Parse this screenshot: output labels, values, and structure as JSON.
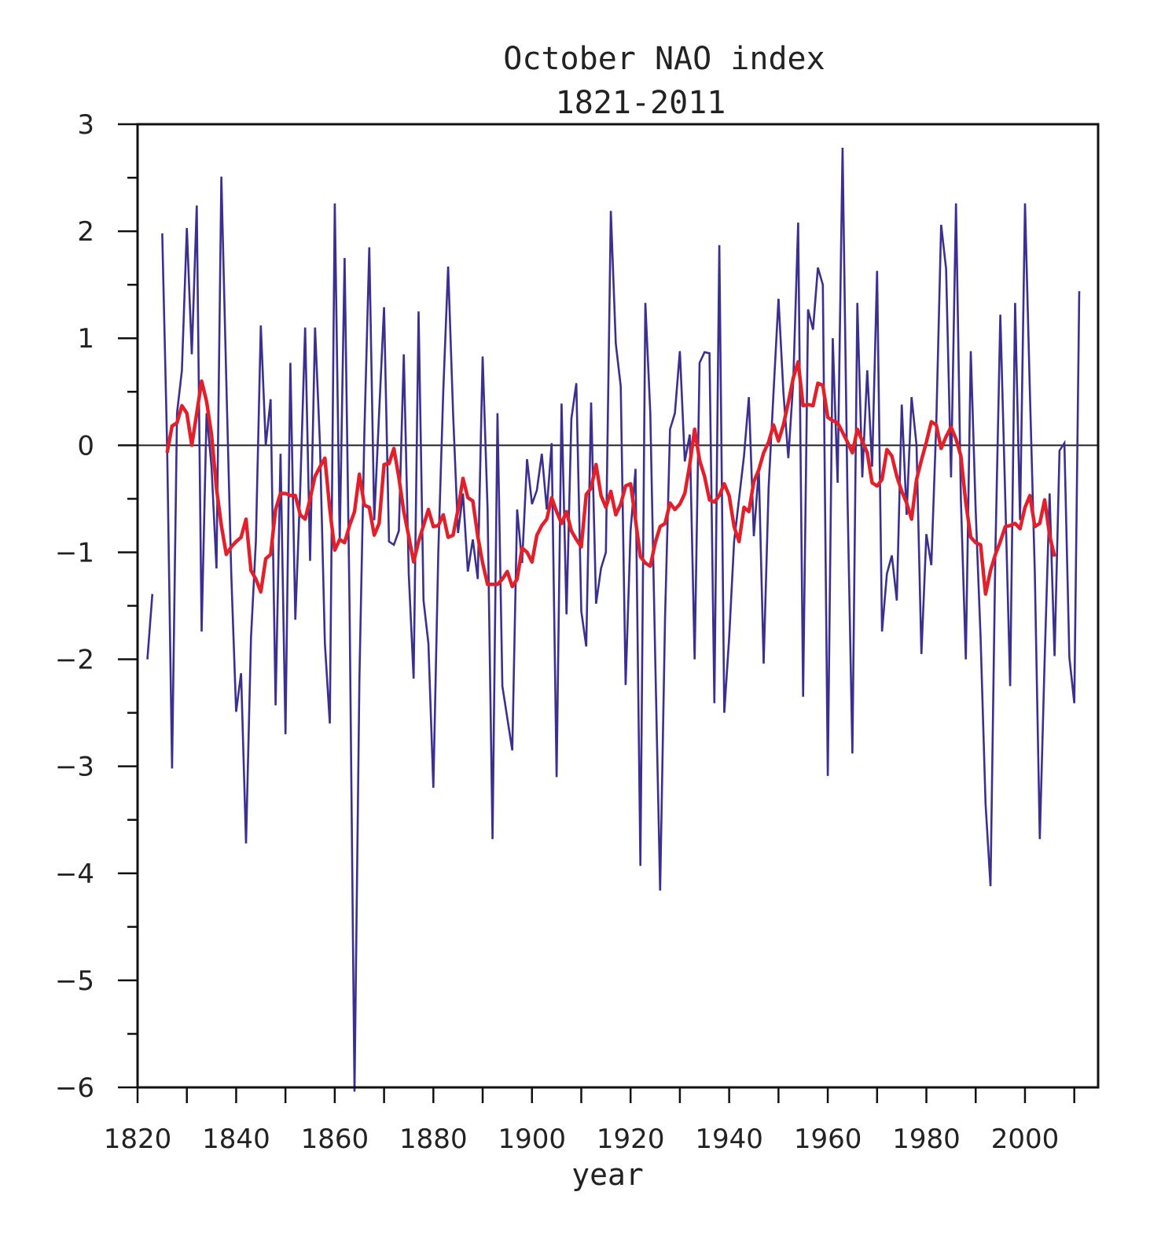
{
  "chart_data": {
    "type": "line",
    "title": "October NAO index",
    "subtitle": "1821-2011",
    "xlabel": "year",
    "ylabel": "",
    "xlim": [
      1820,
      2015
    ],
    "ylim": [
      -6,
      3
    ],
    "x_ticks": [
      1820,
      1840,
      1860,
      1880,
      1900,
      1920,
      1940,
      1960,
      1980,
      2000
    ],
    "x_tick_labels": [
      "1820",
      "1840",
      "1860",
      "1880",
      "1900",
      "1920",
      "1940",
      "1960",
      "1980",
      "2000"
    ],
    "y_ticks": [
      3,
      2,
      1,
      0,
      -1,
      -2,
      -3,
      -4,
      -5,
      -6
    ],
    "y_tick_labels": [
      "3",
      "2",
      "1",
      "0",
      "−1",
      "−2",
      "−3",
      "−4",
      "−5",
      "−6"
    ],
    "grid": false,
    "zero_line": true,
    "colors": {
      "annual": "#3b2f8f",
      "smoothed": "#e3202a",
      "zero_line": "#222222",
      "frame": "#111111"
    },
    "series": [
      {
        "kind": "annual",
        "x_start": 1821,
        "values": [
          null,
          -2.0,
          -1.39,
          null,
          1.98,
          0.0,
          -3.02,
          0.3,
          0.7,
          2.03,
          0.85,
          2.24,
          -1.74,
          0.3,
          -0.2,
          -1.15,
          2.51,
          0.6,
          -1.2,
          -2.49,
          -2.13,
          -3.72,
          -1.8,
          -0.9,
          1.12,
          0.0,
          0.43,
          -2.43,
          -0.08,
          -2.7,
          0.77,
          -1.63,
          -0.4,
          1.1,
          -1.08,
          1.1,
          0.0,
          -1.85,
          -2.6,
          2.26,
          -0.9,
          1.75,
          -1.5,
          -6.04,
          -2.2,
          0.1,
          1.85,
          -0.7,
          0.3,
          1.29,
          -0.9,
          -0.93,
          -0.8,
          0.85,
          -1.2,
          -2.18,
          1.25,
          -1.45,
          -1.85,
          -3.2,
          -1.0,
          0.5,
          1.67,
          0.3,
          -0.82,
          -0.45,
          -1.18,
          -0.88,
          -1.25,
          0.83,
          -0.6,
          -3.68,
          0.3,
          -2.25,
          -2.55,
          -2.85,
          -0.6,
          -1.1,
          -0.13,
          -0.55,
          -0.42,
          -0.08,
          -0.6,
          0.02,
          -3.1,
          0.39,
          -1.58,
          0.25,
          0.58,
          -1.55,
          -1.88,
          0.4,
          -1.48,
          -1.15,
          -1.0,
          2.19,
          0.95,
          0.55,
          -2.24,
          -0.8,
          -0.22,
          -3.93,
          1.33,
          0.3,
          -2.0,
          -4.16,
          -1.6,
          0.15,
          0.3,
          0.88,
          -0.15,
          0.1,
          -2.0,
          0.77,
          0.87,
          0.86,
          -2.41,
          1.87,
          -2.5,
          -1.8,
          -0.9,
          -0.5,
          -0.1,
          0.45,
          -0.85,
          -0.22,
          -2.04,
          -0.4,
          0.5,
          1.37,
          0.5,
          -0.12,
          0.6,
          2.08,
          -2.35,
          1.27,
          1.08,
          1.66,
          1.5,
          -3.09,
          1.0,
          -0.35,
          2.78,
          -0.5,
          -2.88,
          1.33,
          -0.3,
          0.7,
          -0.2,
          1.63,
          -1.74,
          -1.2,
          -1.03,
          -1.45,
          0.38,
          -0.65,
          0.45,
          0.0,
          -1.95,
          -0.83,
          -1.12,
          0.2,
          2.06,
          1.65,
          -0.3,
          2.26,
          -0.5,
          -2.0,
          0.88,
          -0.6,
          -1.8,
          -3.35,
          -4.12,
          -1.0,
          1.22,
          -0.5,
          -2.25,
          1.33,
          -0.7,
          2.26,
          0.5,
          -1.2,
          -3.68,
          -2.0,
          -0.45,
          -1.97,
          -0.05,
          0.02,
          -1.98,
          -2.41,
          1.44
        ]
      },
      {
        "kind": "smoothed",
        "x": [
          1826,
          1827,
          1828,
          1829,
          1830,
          1831,
          1832,
          1833,
          1834,
          1835,
          1836,
          1837,
          1838,
          1839,
          1840,
          1841,
          1842,
          1843,
          1844,
          1845,
          1846,
          1847,
          1848,
          1849,
          1850,
          1851,
          1852,
          1853,
          1854,
          1855,
          1856,
          1857,
          1858,
          1859,
          1860,
          1861,
          1862,
          1863,
          1864,
          1865,
          1866,
          1867,
          1868,
          1869,
          1870,
          1871,
          1872,
          1873,
          1874,
          1875,
          1876,
          1877,
          1878,
          1879,
          1880,
          1881,
          1882,
          1883,
          1884,
          1885,
          1886,
          1887,
          1888,
          1889,
          1890,
          1891,
          1892,
          1893,
          1894,
          1895,
          1896,
          1897,
          1898,
          1899,
          1900,
          1901,
          1902,
          1903,
          1904,
          1905,
          1906,
          1907,
          1908,
          1909,
          1910,
          1911,
          1912,
          1913,
          1914,
          1915,
          1916,
          1917,
          1918,
          1919,
          1920,
          1921,
          1922,
          1923,
          1924,
          1925,
          1926,
          1927,
          1928,
          1929,
          1930,
          1931,
          1932,
          1933,
          1934,
          1935,
          1936,
          1937,
          1938,
          1939,
          1940,
          1941,
          1942,
          1943,
          1944,
          1945,
          1946,
          1947,
          1948,
          1949,
          1950,
          1951,
          1952,
          1953,
          1954,
          1955,
          1956,
          1957,
          1958,
          1959,
          1960,
          1961,
          1962,
          1963,
          1964,
          1965,
          1966,
          1967,
          1968,
          1969,
          1970,
          1971,
          1972,
          1973,
          1974,
          1975,
          1976,
          1977,
          1978,
          1979,
          1980,
          1981,
          1982,
          1983,
          1984,
          1985,
          1986,
          1987,
          1988,
          1989,
          1990,
          1991,
          1992,
          1993,
          1994,
          1995,
          1996,
          1997,
          1998,
          1999,
          2000,
          2001,
          2002,
          2003,
          2004,
          2005,
          2006
        ],
        "y": [
          -0.07,
          0.18,
          0.21,
          0.37,
          0.3,
          0.0,
          0.3,
          0.6,
          0.41,
          0.1,
          -0.4,
          -0.75,
          -1.02,
          -0.95,
          -0.9,
          -0.86,
          -0.69,
          -1.17,
          -1.25,
          -1.37,
          -1.06,
          -1.02,
          -0.6,
          -0.45,
          -0.45,
          -0.47,
          -0.47,
          -0.65,
          -0.69,
          -0.5,
          -0.29,
          -0.2,
          -0.12,
          -0.6,
          -0.98,
          -0.88,
          -0.91,
          -0.75,
          -0.62,
          -0.27,
          -0.56,
          -0.58,
          -0.84,
          -0.73,
          -0.18,
          -0.17,
          -0.03,
          -0.3,
          -0.62,
          -0.85,
          -1.09,
          -0.9,
          -0.75,
          -0.6,
          -0.76,
          -0.75,
          -0.65,
          -0.86,
          -0.84,
          -0.6,
          -0.31,
          -0.49,
          -0.52,
          -0.85,
          -1.1,
          -1.3,
          -1.3,
          -1.3,
          -1.25,
          -1.18,
          -1.32,
          -1.25,
          -0.96,
          -1.0,
          -1.09,
          -0.84,
          -0.75,
          -0.69,
          -0.49,
          -0.62,
          -0.73,
          -0.62,
          -0.8,
          -0.88,
          -0.95,
          -0.46,
          -0.4,
          -0.18,
          -0.47,
          -0.58,
          -0.43,
          -0.65,
          -0.55,
          -0.38,
          -0.36,
          -0.7,
          -1.04,
          -1.1,
          -1.13,
          -0.91,
          -0.76,
          -0.73,
          -0.54,
          -0.6,
          -0.55,
          -0.45,
          -0.18,
          0.15,
          -0.14,
          -0.29,
          -0.51,
          -0.53,
          -0.47,
          -0.36,
          -0.47,
          -0.76,
          -0.9,
          -0.58,
          -0.62,
          -0.34,
          -0.23,
          -0.07,
          0.03,
          0.19,
          0.04,
          0.19,
          0.4,
          0.63,
          0.78,
          0.37,
          0.38,
          0.37,
          0.58,
          0.56,
          0.26,
          0.23,
          0.21,
          0.12,
          0.03,
          -0.07,
          0.15,
          0.04,
          -0.07,
          -0.35,
          -0.38,
          -0.32,
          -0.04,
          -0.1,
          -0.29,
          -0.43,
          -0.54,
          -0.69,
          -0.32,
          -0.14,
          0.03,
          0.22,
          0.19,
          -0.03,
          0.08,
          0.17,
          0.06,
          -0.1,
          -0.54,
          -0.86,
          -0.91,
          -0.93,
          -1.39,
          -1.17,
          -1.02,
          -0.9,
          -0.76,
          -0.75,
          -0.73,
          -0.78,
          -0.58,
          -0.47,
          -0.76,
          -0.73,
          -0.51,
          -0.84,
          -1.04
        ]
      }
    ]
  }
}
